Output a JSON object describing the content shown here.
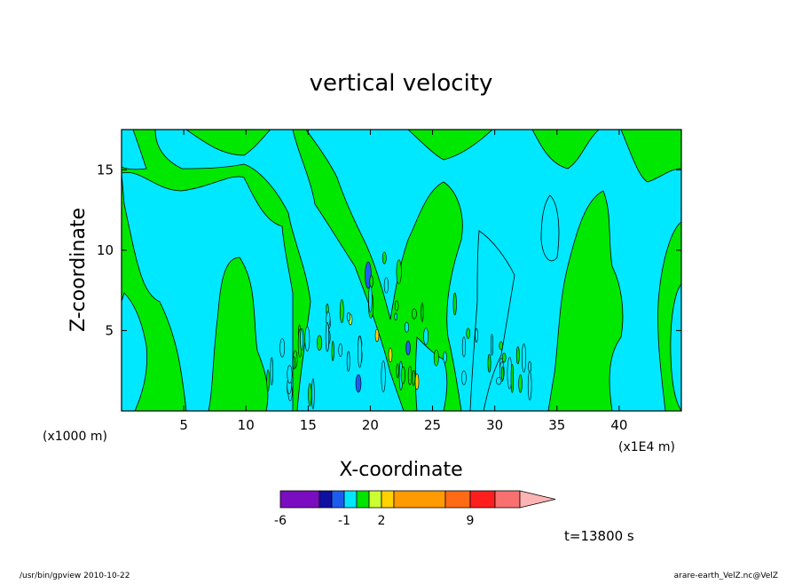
{
  "chart_data": {
    "type": "heatmap",
    "title": "vertical velocity",
    "xlabel": "X-coordinate",
    "ylabel": "Z-coordinate",
    "x_unit_left": "(x1000 m)",
    "x_unit_right": "(x1E4 m)",
    "xlim": [
      0,
      45
    ],
    "ylim": [
      0,
      17.5
    ],
    "x_ticks": [
      "5",
      "10",
      "15",
      "20",
      "25",
      "30",
      "35",
      "40"
    ],
    "y_ticks": [
      "5",
      "10",
      "15"
    ],
    "x_tick_values": [
      5,
      10,
      15,
      20,
      25,
      30,
      35,
      40
    ],
    "y_tick_values": [
      5,
      10,
      15
    ],
    "colorbar": {
      "colors": [
        "#7b0dc0",
        "#1010a0",
        "#1e5cf0",
        "#00e6ff",
        "#00e400",
        "#ccff33",
        "#ffd200",
        "#ff9a00",
        "#ff6a14",
        "#ff1e1e",
        "#f87070",
        "#ffb4b4"
      ],
      "labels": [
        "-6",
        "-1",
        "2",
        "9"
      ]
    },
    "field_colors": {
      "negative": "#00e8ff",
      "positive": "#00e800",
      "strong_negative": "#1e5cf0",
      "strong_positive": "#ffd200"
    },
    "time": "t=13800 s"
  },
  "footer": {
    "left": "/usr/bin/gpview   2010-10-22",
    "right": "arare-earth_VelZ.nc@VelZ"
  }
}
